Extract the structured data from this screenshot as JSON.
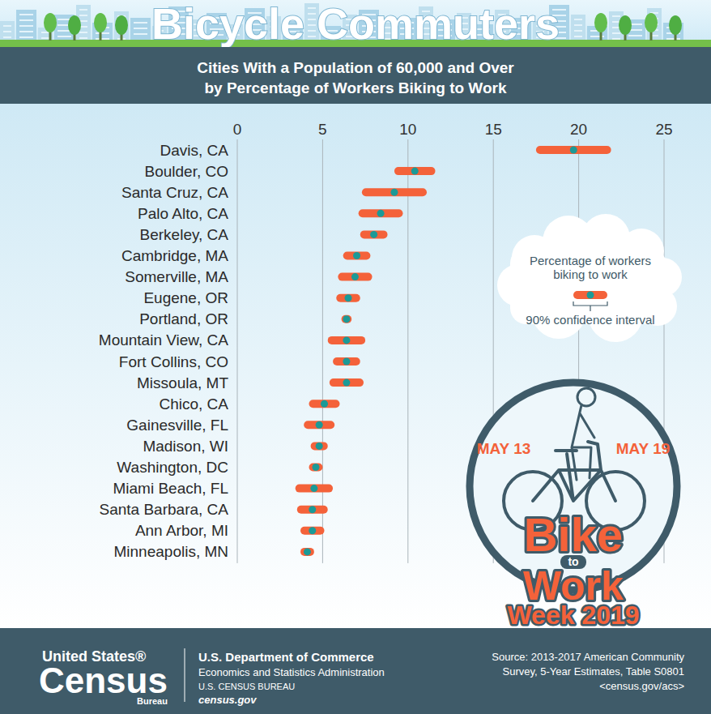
{
  "header": {
    "title": "Bicycle Commuters"
  },
  "chart_data": {
    "type": "dot",
    "title": "Cities With a Population of 60,000 and Over",
    "subtitle": "by Percentage of Workers Biking to Work",
    "orientation": "horizontal",
    "categories": [
      "Davis, CA",
      "Boulder, CO",
      "Santa Cruz, CA",
      "Palo Alto, CA",
      "Berkeley, CA",
      "Cambridge, MA",
      "Somerville, MA",
      "Eugene, OR",
      "Portland, OR",
      "Mountain View, CA",
      "Fort Collins, CO",
      "Missoula, MT",
      "Chico, CA",
      "Gainesville, FL",
      "Madison, WI",
      "Washington, DC",
      "Miami Beach, FL",
      "Santa Barbara, CA",
      "Ann Arbor, MI",
      "Minneapolis, MN"
    ],
    "series": [
      {
        "name": "Percentage of workers biking to work",
        "color": "#f4623a",
        "values": [
          19.7,
          10.4,
          9.2,
          8.4,
          8.0,
          7.0,
          6.9,
          6.5,
          6.4,
          6.4,
          6.4,
          6.4,
          5.1,
          4.8,
          4.8,
          4.6,
          4.5,
          4.4,
          4.4,
          4.1
        ],
        "errors": [
          2.2,
          1.2,
          1.9,
          1.3,
          0.8,
          0.8,
          1.0,
          0.7,
          0.3,
          1.1,
          0.8,
          1.0,
          0.9,
          0.9,
          0.5,
          0.4,
          1.1,
          0.9,
          0.7,
          0.4
        ]
      }
    ],
    "interval_label": "90% confidence interval",
    "xlim": [
      0,
      25
    ],
    "xticks": [
      0,
      5,
      10,
      15,
      20,
      25
    ],
    "grid": true,
    "legend": "right"
  },
  "badge": {
    "start": "MAY 13",
    "end": "MAY 19",
    "title": [
      "Bike",
      "to",
      "Work",
      "Week 2019"
    ]
  },
  "footer": {
    "logo": [
      "United States®",
      "Census",
      "Bureau"
    ],
    "agency": [
      "U.S. Department of Commerce",
      "Economics and Statistics Administration",
      "U.S. CENSUS BUREAU",
      "census.gov"
    ],
    "source": [
      "Source: 2013-2017 American Community",
      "Survey, 5-Year Estimates, Table S0801",
      "<census.gov/acs>"
    ]
  }
}
